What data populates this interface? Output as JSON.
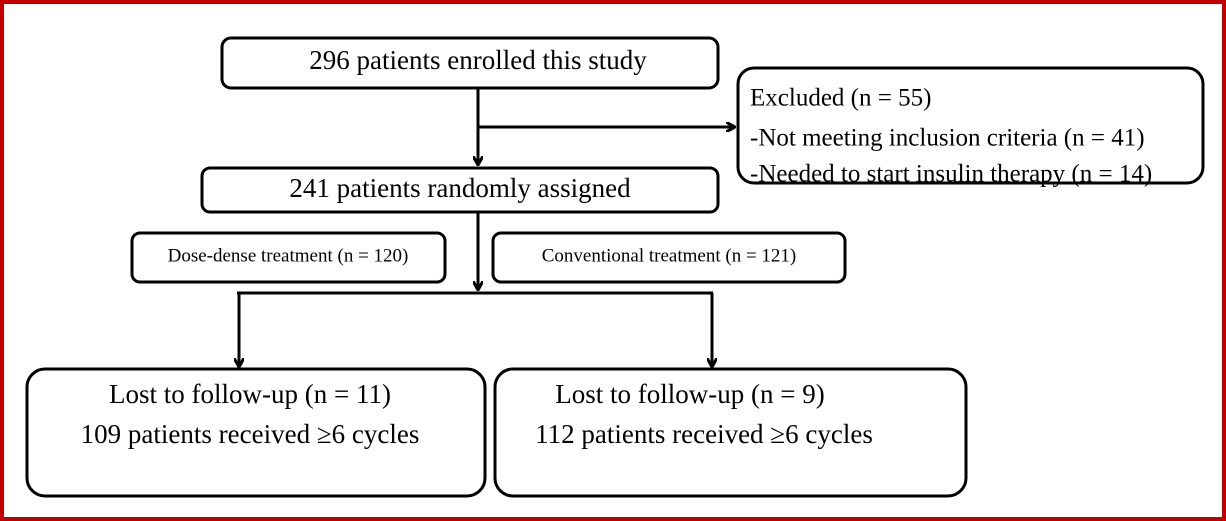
{
  "nodes": [
    {
      "label": "296 patients enrolled this study"
    },
    {
      "lines": [
        "Excluded (n = 55)",
        "-Not meeting inclusion criteria (n = 41)",
        "-Needed to start insulin therapy (n = 14)"
      ]
    },
    {
      "label": "241 patients randomly assigned"
    },
    {
      "label": "Dose-dense treatment (n = 120)"
    },
    {
      "label": "Conventional treatment (n = 121)"
    },
    {
      "lines": [
        "Lost to follow-up (n = 11)",
        "109 patients received ≥6 cycles"
      ]
    },
    {
      "lines": [
        "Lost to follow-up (n = 9)",
        "112 patients received ≥6 cycles"
      ]
    }
  ]
}
